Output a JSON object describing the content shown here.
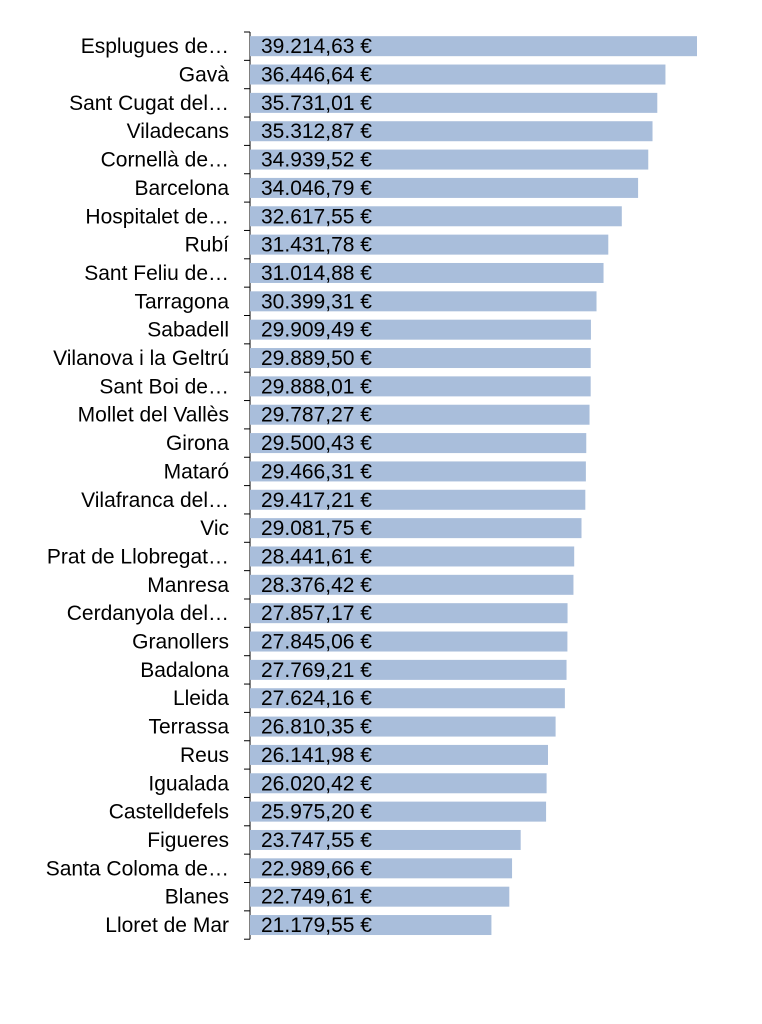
{
  "chart_data": {
    "type": "bar",
    "orientation": "horizontal",
    "color": "#a9bedb",
    "value_suffix": " €",
    "grid": false,
    "categories": [
      "Esplugues de…",
      "Gavà",
      "Sant Cugat del…",
      "Viladecans",
      "Cornellà de…",
      "Barcelona",
      "Hospitalet de…",
      "Rubí",
      "Sant Feliu de…",
      "Tarragona",
      "Sabadell",
      "Vilanova i la Geltrú",
      "Sant Boi de…",
      "Mollet del Vallès",
      "Girona",
      "Mataró",
      "Vilafranca del…",
      "Vic",
      "Prat de Llobregat…",
      "Manresa",
      "Cerdanyola del…",
      "Granollers",
      "Badalona",
      "Lleida",
      "Terrassa",
      "Reus",
      "Igualada",
      "Castelldefels",
      "Figueres",
      "Santa Coloma de…",
      "Blanes",
      "Lloret de Mar"
    ],
    "values": [
      39214.63,
      36446.64,
      35731.01,
      35312.87,
      34939.52,
      34046.79,
      32617.55,
      31431.78,
      31014.88,
      30399.31,
      29909.49,
      29889.5,
      29888.01,
      29787.27,
      29500.43,
      29466.31,
      29417.21,
      29081.75,
      28441.61,
      28376.42,
      27857.17,
      27845.06,
      27769.21,
      27624.16,
      26810.35,
      26141.98,
      26020.42,
      25975.2,
      23747.55,
      22989.66,
      22749.61,
      21179.55
    ],
    "value_labels": [
      "39.214,63 €",
      "36.446,64 €",
      "35.731,01 €",
      "35.312,87 €",
      "34.939,52 €",
      "34.046,79 €",
      "32.617,55 €",
      "31.431,78 €",
      "31.014,88 €",
      "30.399,31 €",
      "29.909,49 €",
      "29.889,50 €",
      "29.888,01 €",
      "29.787,27 €",
      "29.500,43 €",
      "29.466,31 €",
      "29.417,21 €",
      "29.081,75 €",
      "28.441,61 €",
      "28.376,42 €",
      "27.857,17 €",
      "27.845,06 €",
      "27.769,21 €",
      "27.624,16 €",
      "26.810,35 €",
      "26.141,98 €",
      "26.020,42 €",
      "25.975,20 €",
      "23.747,55 €",
      "22.989,66 €",
      "22.749,61 €",
      "21.179,55 €"
    ],
    "xlim": [
      0,
      39214.63
    ]
  }
}
